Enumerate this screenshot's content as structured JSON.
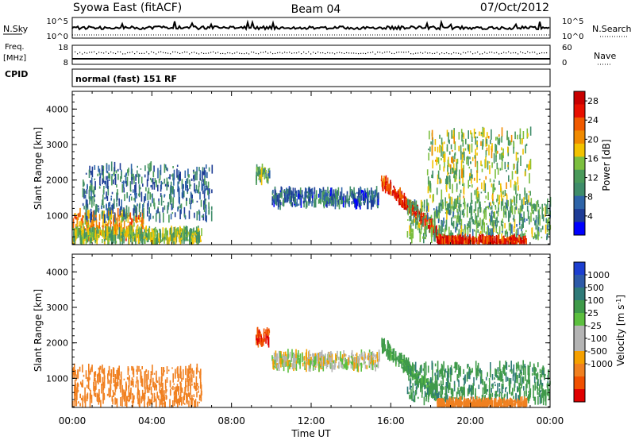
{
  "header": {
    "station": "Syowa East (fitACF)",
    "beam": "Beam 04",
    "date": "07/Oct/2012"
  },
  "noise_panel": {
    "left_label": "N.Sky",
    "left_ticks": [
      "10^5",
      "10^0"
    ],
    "right_ticks": [
      "10^5",
      "10^0"
    ],
    "right_label": "N.Search"
  },
  "freq_panel": {
    "left_label_top": "Freq.",
    "left_label_unit": "[MHz]",
    "left_ticks": [
      "18",
      "8"
    ],
    "right_ticks": [
      "60",
      "0"
    ],
    "right_label": "Nave",
    "cpid_label": "CPID"
  },
  "cpid_text": "normal (fast) 151 RF",
  "colors": {
    "power": [
      "#0000ff",
      "#1e3c96",
      "#2e64a8",
      "#3f8c6a",
      "#4a9a5a",
      "#7cbf3f",
      "#f2c200",
      "#f08a00",
      "#f05a00",
      "#e81000",
      "#c80000"
    ],
    "velocity": [
      "#1d3fd0",
      "#2e5aa8",
      "#2f7a78",
      "#3f9a4a",
      "#5cbf3f",
      "#b4b4b4",
      "#b4b4b4",
      "#f5a000",
      "#f08020",
      "#f05000",
      "#e00000"
    ]
  },
  "chart_data": [
    {
      "type": "heatmap",
      "title": "Syowa East (fitACF) Beam 04 07/Oct/2012",
      "xlabel": "Time UT",
      "ylabel": "Slant Range [km]",
      "x_ticks": [
        "00:00",
        "04:00",
        "08:00",
        "12:00",
        "16:00",
        "20:00",
        "00:00"
      ],
      "y_ticks": [
        1000,
        2000,
        3000,
        4000
      ],
      "xlim_hours": [
        0,
        24
      ],
      "ylim_km": [
        180,
        4500
      ],
      "colorbar": {
        "label": "Power [dB]",
        "ticks": [
          4,
          8,
          12,
          16,
          20,
          24,
          28
        ],
        "range": [
          0,
          30
        ]
      },
      "features": [
        {
          "name": "dense near-range band",
          "t_start": 0.0,
          "t_end": 3.6,
          "range_km": [
            400,
            1100
          ],
          "value": 20
        },
        {
          "name": "low-range echoes",
          "t_start": 0.0,
          "t_end": 6.5,
          "range_km": [
            250,
            600
          ],
          "value": 14
        },
        {
          "name": "blue scatter",
          "t_start": 0.5,
          "t_end": 7.0,
          "range_km": [
            900,
            2400
          ],
          "value": 8
        },
        {
          "name": "patch near 2200 km",
          "t_start": 9.2,
          "t_end": 9.9,
          "range_km": [
            2000,
            2350
          ],
          "value": 12
        },
        {
          "name": "mid-range trail",
          "t_start": 10.0,
          "t_end": 15.4,
          "range_km": [
            1300,
            1700
          ],
          "value": 7
        },
        {
          "name": "descending strong echo",
          "t_start": 15.5,
          "t_end": 18.3,
          "range_km": [
            600,
            2000
          ],
          "value": 26
        },
        {
          "name": "evening band",
          "t_start": 16.8,
          "t_end": 24.0,
          "range_km": [
            350,
            1400
          ],
          "value": 12
        },
        {
          "name": "strong low range",
          "t_start": 18.3,
          "t_end": 22.8,
          "range_km": [
            200,
            360
          ],
          "value": 26
        },
        {
          "name": "sparse high range",
          "t_start": 17.8,
          "t_end": 23.0,
          "range_km": [
            1400,
            3400
          ],
          "value": 15
        }
      ]
    },
    {
      "type": "heatmap",
      "xlabel": "Time UT",
      "ylabel": "Slant Range [km]",
      "x_ticks": [
        "00:00",
        "04:00",
        "08:00",
        "12:00",
        "16:00",
        "20:00",
        "00:00"
      ],
      "y_ticks": [
        1000,
        2000,
        3000,
        4000
      ],
      "xlim_hours": [
        0,
        24
      ],
      "ylim_km": [
        180,
        4500
      ],
      "colorbar": {
        "label": "Velocity [m s^-1]",
        "ticks": [
          1000,
          500,
          100,
          25,
          -25,
          -100,
          -500,
          -1000
        ]
      },
      "features": [
        {
          "name": "orange near range",
          "t_start": 0.0,
          "t_end": 6.5,
          "range_km": [
            250,
            1300
          ],
          "value": -300
        },
        {
          "name": "patch near 2200 km",
          "t_start": 9.2,
          "t_end": 9.9,
          "range_km": [
            2000,
            2350
          ],
          "value": -800
        },
        {
          "name": "grey mid-range trail",
          "t_start": 10.0,
          "t_end": 15.4,
          "range_km": [
            1300,
            1700
          ],
          "value": 0
        },
        {
          "name": "green descending echo",
          "t_start": 15.5,
          "t_end": 18.3,
          "range_km": [
            600,
            2000
          ],
          "value": 150
        },
        {
          "name": "green-teal evening band",
          "t_start": 16.8,
          "t_end": 24.0,
          "range_km": [
            350,
            1400
          ],
          "value": 400
        },
        {
          "name": "orange low range",
          "t_start": 18.3,
          "t_end": 22.8,
          "range_km": [
            200,
            360
          ],
          "value": -200
        }
      ]
    }
  ],
  "axis": {
    "xlabel": "Time UT",
    "ylabel": "Slant Range [km]",
    "power_label": "Power [dB]",
    "velocity_label": "Velocity [m s",
    "velocity_sup": "-1",
    "velocity_close": "]"
  }
}
